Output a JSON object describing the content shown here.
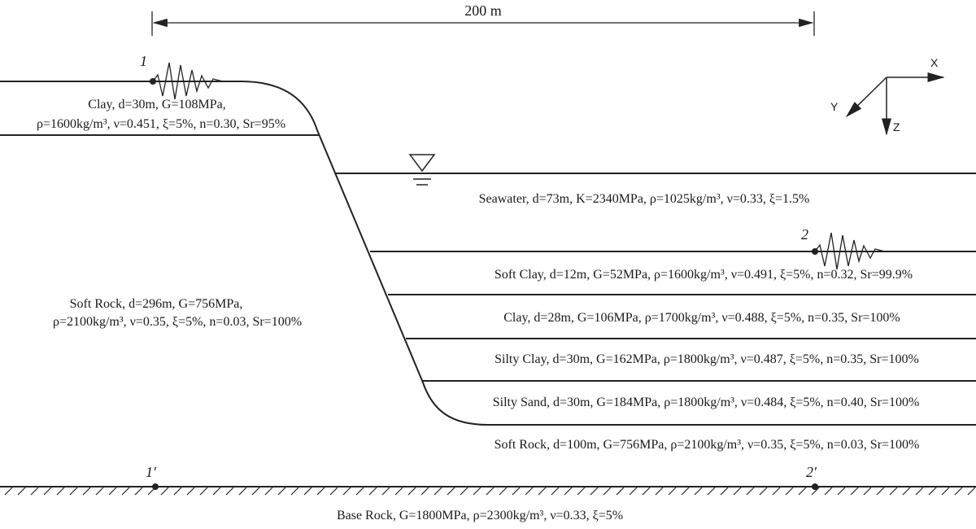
{
  "dimension": {
    "label": "200 m"
  },
  "axes": {
    "x": "X",
    "y": "Y",
    "z": "Z"
  },
  "points": {
    "p1": "1",
    "p2": "2",
    "p1b": "1′",
    "p2b": "2′"
  },
  "layers": {
    "clay_top": {
      "line1": "Clay, d=30m, G=108MPa,",
      "line2": "ρ=1600kg/m³, ν=0.451, ξ=5%, n=0.30, Sr=95%"
    },
    "soft_rock_left": {
      "line1": "Soft Rock, d=296m, G=756MPa,",
      "line2": "ρ=2100kg/m³, ν=0.35, ξ=5%, n=0.03, Sr=100%"
    },
    "seawater": "Seawater, d=73m, K=2340MPa, ρ=1025kg/m³, ν=0.33, ξ=1.5%",
    "soft_clay": "Soft Clay, d=12m, G=52MPa, ρ=1600kg/m³, ν=0.491, ξ=5%, n=0.32, Sr=99.9%",
    "clay": "Clay, d=28m, G=106MPa, ρ=1700kg/m³, ν=0.488, ξ=5%, n=0.35, Sr=100%",
    "silty_clay": "Silty Clay, d=30m, G=162MPa, ρ=1800kg/m³, ν=0.487, ξ=5%, n=0.35, Sr=100%",
    "silty_sand": "Silty Sand, d=30m, G=184MPa, ρ=1800kg/m³, ν=0.484, ξ=5%, n=0.40, Sr=100%",
    "soft_rock_right": "Soft Rock, d=100m, G=756MPa, ρ=2100kg/m³, ν=0.35, ξ=5%, n=0.03, Sr=100%",
    "base_rock": "Base Rock, G=1800MPa, ρ=2300kg/m³, ν=0.33, ξ=5%"
  }
}
